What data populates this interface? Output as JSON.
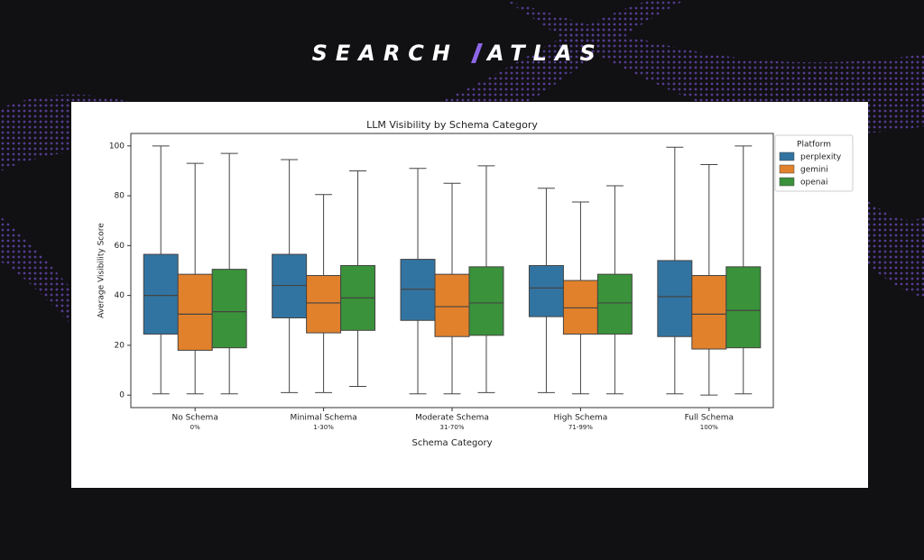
{
  "brand": {
    "left": "SEARCH",
    "right": "ATLAS"
  },
  "chart_data": {
    "type": "box",
    "title": "LLM Visibility by Schema Category",
    "x_label": "Schema Category",
    "y_label": "Average Visibility Score",
    "categories": [
      "No Schema",
      "Minimal Schema",
      "Moderate Schema",
      "High Schema",
      "Full Schema"
    ],
    "category_sublabels": [
      "0%",
      "1-30%",
      "31-70%",
      "71-99%",
      "100%"
    ],
    "ylim": [
      -5,
      105
    ],
    "yticks": [
      0,
      20,
      40,
      60,
      80,
      100
    ],
    "legend_title": "Platform",
    "legend_position": "outside-right-top",
    "series": [
      {
        "name": "perplexity",
        "color": "#3274a1",
        "values": [
          {
            "whislo": 0.5,
            "q1": 24.5,
            "med": 40,
            "q3": 56.5,
            "whishi": 100
          },
          {
            "whislo": 1,
            "q1": 31,
            "med": 44,
            "q3": 56.5,
            "whishi": 94.5
          },
          {
            "whislo": 0.5,
            "q1": 30,
            "med": 42.5,
            "q3": 54.5,
            "whishi": 91
          },
          {
            "whislo": 1,
            "q1": 31.5,
            "med": 43,
            "q3": 52,
            "whishi": 83
          },
          {
            "whislo": 0.5,
            "q1": 23.5,
            "med": 39.5,
            "q3": 54,
            "whishi": 99.5
          }
        ]
      },
      {
        "name": "gemini",
        "color": "#e1812c",
        "values": [
          {
            "whislo": 0.5,
            "q1": 18,
            "med": 32.5,
            "q3": 48.5,
            "whishi": 93
          },
          {
            "whislo": 1,
            "q1": 25,
            "med": 37,
            "q3": 48,
            "whishi": 80.5
          },
          {
            "whislo": 0.5,
            "q1": 23.5,
            "med": 35.5,
            "q3": 48.5,
            "whishi": 85
          },
          {
            "whislo": 0.5,
            "q1": 24.5,
            "med": 35,
            "q3": 46,
            "whishi": 77.5
          },
          {
            "whislo": 0,
            "q1": 18.5,
            "med": 32.5,
            "q3": 48,
            "whishi": 92.5
          }
        ]
      },
      {
        "name": "openai",
        "color": "#3a923a",
        "values": [
          {
            "whislo": 0.5,
            "q1": 19,
            "med": 33.5,
            "q3": 50.5,
            "whishi": 97
          },
          {
            "whislo": 3.5,
            "q1": 26,
            "med": 39,
            "q3": 52,
            "whishi": 90
          },
          {
            "whislo": 1,
            "q1": 24,
            "med": 37,
            "q3": 51.5,
            "whishi": 92
          },
          {
            "whislo": 0.5,
            "q1": 24.5,
            "med": 37,
            "q3": 48.5,
            "whishi": 84
          },
          {
            "whislo": 0.5,
            "q1": 19,
            "med": 34,
            "q3": 51.5,
            "whishi": 100
          }
        ]
      }
    ]
  }
}
